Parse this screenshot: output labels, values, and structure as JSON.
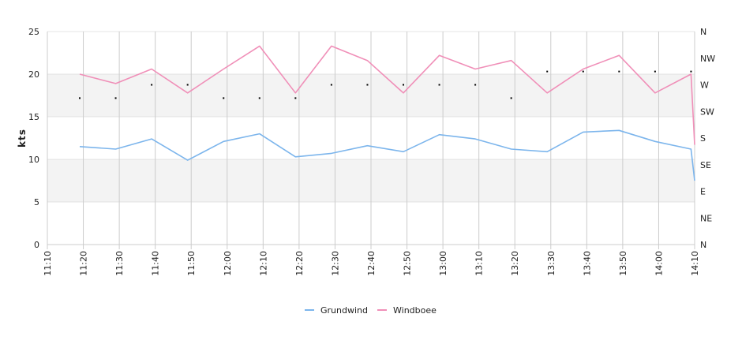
{
  "chart_data": {
    "type": "line",
    "ylabel": "kts",
    "ylim": [
      0,
      25
    ],
    "yticks": [
      "0",
      "5",
      "10",
      "15",
      "20",
      "25"
    ],
    "x_ticks": [
      "11:10",
      "11:20",
      "11:30",
      "11:40",
      "11:50",
      "12:00",
      "12:10",
      "12:20",
      "12:30",
      "12:40",
      "12:50",
      "13:00",
      "13:10",
      "13:20",
      "13:30",
      "13:40",
      "13:50",
      "14:00",
      "14:10"
    ],
    "x_minutes": [
      0,
      80,
      180
    ],
    "direction_axis": [
      "N",
      "NE",
      "E",
      "SE",
      "S",
      "SW",
      "W",
      "NW",
      "N"
    ],
    "grid": true,
    "legend_position": "bottom",
    "colors": {
      "grundwind": "#7cb5ec",
      "windboee": "#f08fb8",
      "band": "#f3f3f3",
      "gridline": "#cccccc",
      "dot": "#000000"
    },
    "series": [
      {
        "name": "Grundwind",
        "x": [
          "11:19",
          "11:29",
          "11:39",
          "11:49",
          "11:59",
          "12:09",
          "12:19",
          "12:29",
          "12:39",
          "12:49",
          "12:59",
          "13:09",
          "13:19",
          "13:29",
          "13:39",
          "13:49",
          "13:59",
          "14:09",
          "14:10"
        ],
        "values": [
          11.5,
          11.2,
          12.4,
          9.9,
          12.1,
          13.0,
          10.3,
          10.7,
          11.6,
          10.9,
          12.9,
          12.4,
          11.2,
          10.9,
          13.2,
          13.4,
          12.1,
          11.2,
          7.5
        ]
      },
      {
        "name": "Windboee",
        "x": [
          "11:19",
          "11:29",
          "11:39",
          "11:49",
          "11:59",
          "12:09",
          "12:19",
          "12:29",
          "12:39",
          "12:49",
          "12:59",
          "13:09",
          "13:19",
          "13:29",
          "13:39",
          "13:49",
          "13:59",
          "14:09",
          "14:10"
        ],
        "values": [
          20.0,
          18.9,
          20.6,
          17.8,
          20.6,
          23.3,
          17.8,
          23.3,
          21.6,
          17.8,
          22.2,
          20.6,
          21.6,
          17.8,
          20.6,
          22.2,
          17.8,
          20.0,
          11.7
        ]
      }
    ],
    "direction": {
      "x": [
        "11:19",
        "11:29",
        "11:39",
        "11:49",
        "11:59",
        "12:09",
        "12:19",
        "12:29",
        "12:39",
        "12:49",
        "12:59",
        "13:09",
        "13:19",
        "13:29",
        "13:39",
        "13:49",
        "13:59",
        "14:09"
      ],
      "values": [
        5.5,
        5.5,
        6.0,
        6.0,
        5.5,
        5.5,
        5.5,
        6.0,
        6.0,
        6.0,
        6.0,
        6.0,
        5.5,
        6.5,
        6.5,
        6.5,
        6.5,
        6.5
      ]
    }
  }
}
